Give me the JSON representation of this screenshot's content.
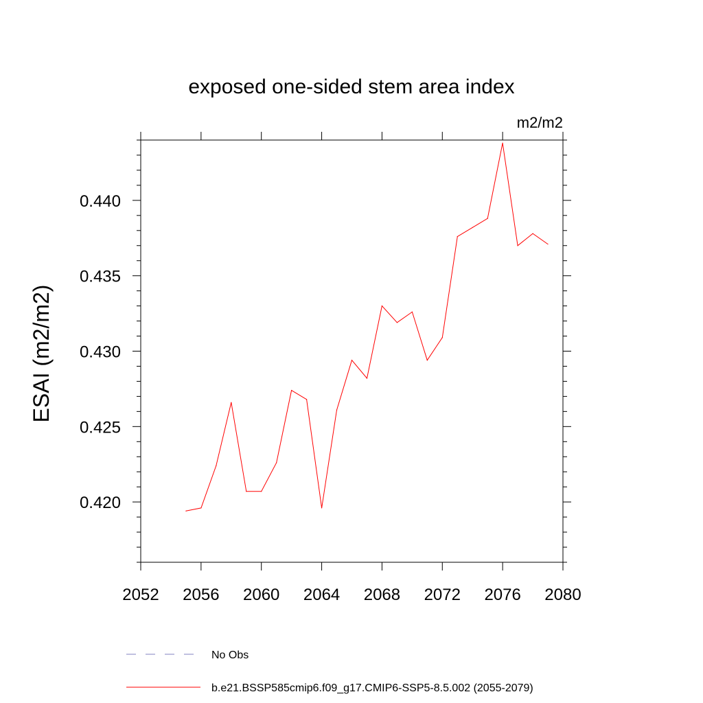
{
  "chart_data": {
    "type": "line",
    "title": "exposed one-sided stem area index",
    "units": "m2/m2",
    "xlabel": "",
    "ylabel": "ESAI  (m2/m2)",
    "xlim": [
      2052,
      2080
    ],
    "ylim": [
      0.416,
      0.444
    ],
    "x_ticks": [
      2052,
      2056,
      2060,
      2064,
      2068,
      2072,
      2076,
      2080
    ],
    "x_tick_labels": [
      "2052",
      "2056",
      "2060",
      "2064",
      "2068",
      "2072",
      "2076",
      "2080"
    ],
    "y_ticks": [
      0.42,
      0.425,
      0.43,
      0.435,
      0.44
    ],
    "y_tick_labels": [
      "0.420",
      "0.425",
      "0.430",
      "0.435",
      "0.440"
    ],
    "grid": false,
    "legend_position": "bottom",
    "series": [
      {
        "name": "b.e21.BSSP585cmip6.f09_g17.CMIP6-SSP5-8.5.002 (2055-2079)",
        "color": "#ff0000",
        "x": [
          2055,
          2056,
          2057,
          2058,
          2059,
          2060,
          2061,
          2062,
          2063,
          2064,
          2065,
          2066,
          2067,
          2068,
          2069,
          2070,
          2071,
          2072,
          2073,
          2074,
          2075,
          2076,
          2077,
          2078,
          2079
        ],
        "values": [
          0.4194,
          0.4196,
          0.4224,
          0.4266,
          0.4207,
          0.4207,
          0.4226,
          0.4274,
          0.4268,
          0.4196,
          0.4261,
          0.4294,
          0.4282,
          0.433,
          0.4319,
          0.4326,
          0.4294,
          0.4309,
          0.4376,
          0.4382,
          0.4388,
          0.4438,
          0.437,
          0.4378,
          0.4371
        ]
      }
    ],
    "legend": [
      {
        "label": "No Obs",
        "color": "#8080c0",
        "dash": "dashed"
      },
      {
        "label": "b.e21.BSSP585cmip6.f09_g17.CMIP6-SSP5-8.5.002 (2055-2079)",
        "color": "#ff0000",
        "dash": "solid"
      }
    ]
  }
}
